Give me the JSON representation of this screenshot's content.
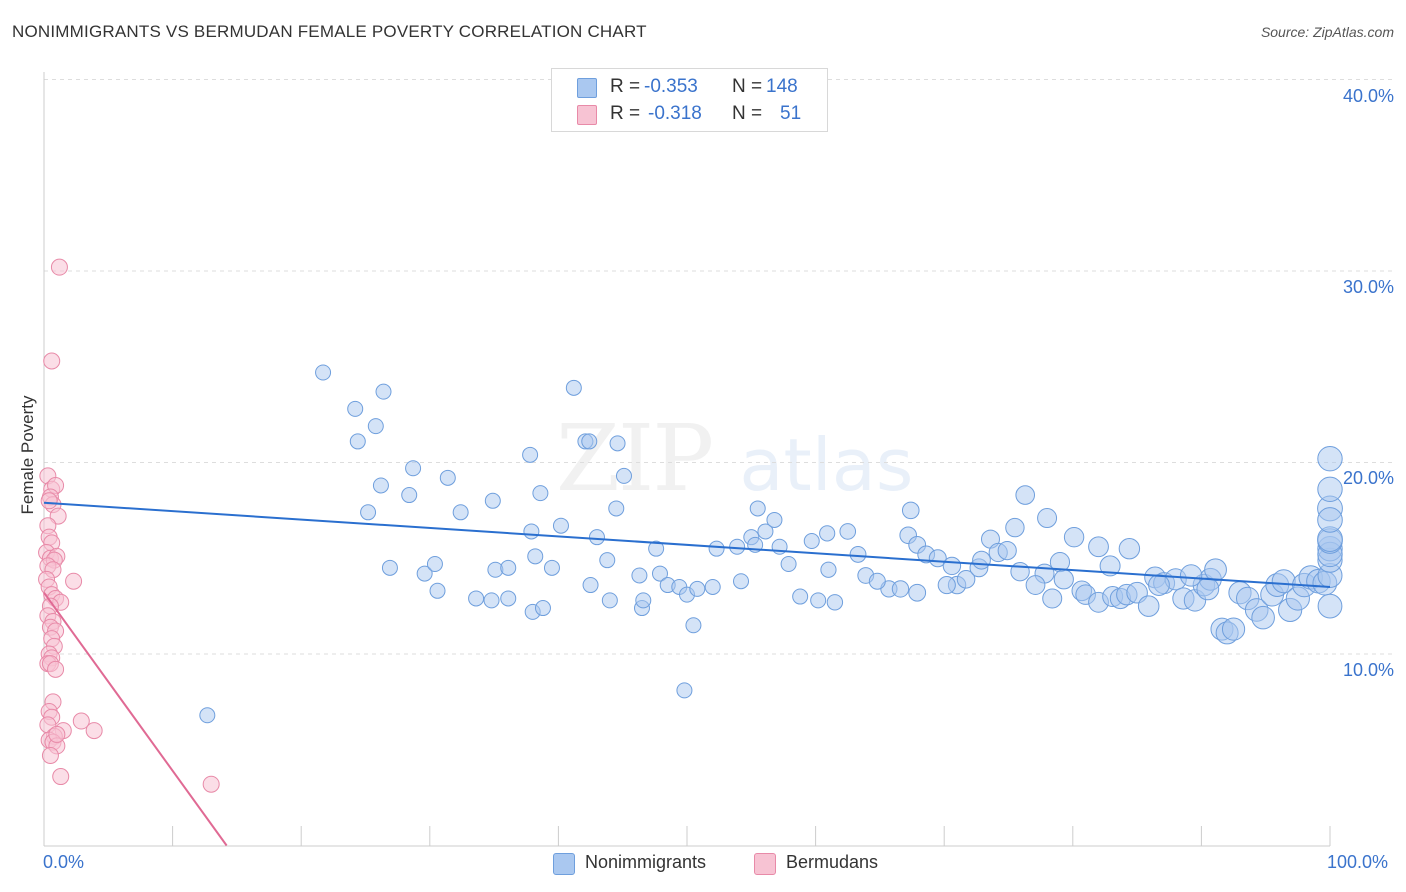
{
  "header": {
    "title": "NONIMMIGRANTS VS BERMUDAN FEMALE POVERTY CORRELATION CHART",
    "source": "Source: ZipAtlas.com"
  },
  "watermark": {
    "zip": "ZIP",
    "atlas": "atlas"
  },
  "legend": {
    "rows": [
      {
        "r_label": "R = ",
        "r_value": "-0.353",
        "n_label": "N = ",
        "n_value": "148"
      },
      {
        "r_label": "R = ",
        "r_value": "-0.318",
        "n_label": "N = ",
        "n_value": "51"
      }
    ]
  },
  "bottom_legend": {
    "series_1": "Nonimmigrants",
    "series_2": "Bermudans"
  },
  "colors": {
    "blue_fill": "#aac8f0",
    "blue_stroke": "#6f9fdd",
    "blue_line": "#2a6fcf",
    "pink_fill": "#f7c3d3",
    "pink_stroke": "#e88aa8",
    "pink_line": "#e06a94",
    "tick_text": "#3a73cc",
    "grid": "#dddddd"
  },
  "chart_data": {
    "type": "scatter",
    "title": "NONIMMIGRANTS VS BERMUDAN FEMALE POVERTY CORRELATION CHART",
    "xlabel": "",
    "ylabel": "Female Poverty",
    "xlim": [
      0,
      100
    ],
    "ylim": [
      0,
      41
    ],
    "x_tick_labels": [
      "0.0%",
      "100.0%"
    ],
    "y_ticks": [
      10,
      20,
      30,
      40
    ],
    "y_tick_labels": [
      "10.0%",
      "20.0%",
      "30.0%",
      "40.0%"
    ],
    "grid": "horizontal dashed",
    "legend_position": "top-center",
    "series": [
      {
        "name": "Nonimmigrants",
        "color": "#aac8f0",
        "R": -0.353,
        "N": 148,
        "trend": {
          "x": [
            0,
            100
          ],
          "y": [
            17.9,
            13.5
          ]
        },
        "points": [
          [
            21.7,
            24.7
          ],
          [
            26.4,
            23.7
          ],
          [
            24.2,
            22.8
          ],
          [
            24.4,
            21.1
          ],
          [
            25.8,
            21.9
          ],
          [
            26.2,
            18.8
          ],
          [
            25.2,
            17.4
          ],
          [
            28.7,
            19.7
          ],
          [
            28.4,
            18.3
          ],
          [
            31.4,
            19.2
          ],
          [
            32.4,
            17.4
          ],
          [
            34.9,
            18.0
          ],
          [
            37.8,
            20.4
          ],
          [
            37.9,
            16.4
          ],
          [
            38.6,
            18.4
          ],
          [
            40.2,
            16.7
          ],
          [
            41.2,
            23.9
          ],
          [
            42.1,
            21.1
          ],
          [
            42.4,
            21.1
          ],
          [
            44.6,
            21.0
          ],
          [
            45.1,
            19.3
          ],
          [
            44.5,
            17.6
          ],
          [
            35.1,
            14.4
          ],
          [
            36.1,
            14.5
          ],
          [
            38.2,
            15.1
          ],
          [
            39.5,
            14.5
          ],
          [
            43.0,
            16.1
          ],
          [
            43.8,
            14.9
          ],
          [
            47.6,
            15.5
          ],
          [
            26.9,
            14.5
          ],
          [
            29.6,
            14.2
          ],
          [
            30.6,
            13.3
          ],
          [
            30.4,
            14.7
          ],
          [
            33.6,
            12.9
          ],
          [
            34.8,
            12.8
          ],
          [
            36.1,
            12.9
          ],
          [
            38.0,
            12.2
          ],
          [
            38.8,
            12.4
          ],
          [
            42.5,
            13.6
          ],
          [
            44.0,
            12.8
          ],
          [
            46.3,
            14.1
          ],
          [
            46.5,
            12.4
          ],
          [
            47.9,
            14.2
          ],
          [
            48.5,
            13.6
          ],
          [
            49.4,
            13.5
          ],
          [
            50.0,
            13.1
          ],
          [
            50.8,
            13.4
          ],
          [
            52.0,
            13.5
          ],
          [
            50.5,
            11.5
          ],
          [
            54.2,
            13.8
          ],
          [
            52.3,
            15.5
          ],
          [
            53.9,
            15.6
          ],
          [
            55.0,
            16.1
          ],
          [
            55.5,
            17.6
          ],
          [
            55.3,
            15.7
          ],
          [
            56.1,
            16.4
          ],
          [
            56.8,
            17.0
          ],
          [
            57.2,
            15.6
          ],
          [
            58.8,
            13.0
          ],
          [
            60.2,
            12.8
          ],
          [
            61.5,
            12.7
          ],
          [
            59.7,
            15.9
          ],
          [
            60.9,
            16.3
          ],
          [
            61.0,
            14.4
          ],
          [
            62.5,
            16.4
          ],
          [
            63.3,
            15.2
          ],
          [
            63.9,
            14.1
          ],
          [
            65.7,
            13.4
          ],
          [
            66.6,
            13.4
          ],
          [
            67.4,
            17.5
          ],
          [
            67.2,
            16.2
          ],
          [
            67.9,
            15.7
          ],
          [
            68.6,
            15.2
          ],
          [
            69.5,
            15.0
          ],
          [
            70.6,
            14.6
          ],
          [
            71.0,
            13.6
          ],
          [
            71.7,
            13.9
          ],
          [
            72.7,
            14.5
          ],
          [
            73.6,
            16.0
          ],
          [
            74.2,
            15.3
          ],
          [
            74.9,
            15.4
          ],
          [
            75.5,
            16.6
          ],
          [
            75.9,
            14.3
          ],
          [
            77.8,
            14.2
          ],
          [
            77.1,
            13.6
          ],
          [
            76.3,
            18.3
          ],
          [
            78.0,
            17.1
          ],
          [
            79.0,
            14.8
          ],
          [
            79.3,
            13.9
          ],
          [
            80.1,
            16.1
          ],
          [
            80.7,
            13.3
          ],
          [
            81.0,
            13.1
          ],
          [
            82.0,
            12.7
          ],
          [
            83.1,
            13.0
          ],
          [
            83.7,
            12.9
          ],
          [
            84.2,
            13.1
          ],
          [
            82.0,
            15.6
          ],
          [
            82.9,
            14.6
          ],
          [
            85.0,
            13.2
          ],
          [
            85.9,
            12.5
          ],
          [
            86.4,
            14.0
          ],
          [
            87.1,
            13.7
          ],
          [
            84.4,
            15.5
          ],
          [
            88.0,
            13.9
          ],
          [
            88.6,
            12.9
          ],
          [
            89.5,
            12.8
          ],
          [
            90.2,
            13.6
          ],
          [
            90.7,
            13.9
          ],
          [
            91.1,
            14.4
          ],
          [
            91.6,
            11.3
          ],
          [
            92.0,
            11.1
          ],
          [
            92.5,
            11.3
          ],
          [
            93.0,
            13.2
          ],
          [
            93.6,
            12.9
          ],
          [
            94.3,
            12.3
          ],
          [
            94.8,
            11.9
          ],
          [
            95.5,
            13.1
          ],
          [
            95.9,
            13.6
          ],
          [
            96.4,
            13.8
          ],
          [
            96.9,
            12.3
          ],
          [
            97.5,
            12.9
          ],
          [
            98.0,
            13.6
          ],
          [
            98.5,
            14.0
          ],
          [
            99.1,
            13.8
          ],
          [
            99.6,
            13.7
          ],
          [
            100.2,
            12.5
          ],
          [
            100.6,
            14.1
          ],
          [
            101.4,
            14.9
          ],
          [
            102.3,
            15.5
          ],
          [
            102.9,
            15.2
          ],
          [
            103.7,
            15.9
          ],
          [
            104.4,
            16.0
          ],
          [
            104.9,
            17.6
          ],
          [
            103.8,
            17.0
          ],
          [
            103.1,
            18.6
          ],
          [
            103.0,
            20.2
          ],
          [
            12.7,
            6.8
          ],
          [
            49.8,
            8.1
          ],
          [
            57.9,
            14.7
          ],
          [
            46.6,
            12.8
          ],
          [
            64.8,
            13.8
          ],
          [
            67.9,
            13.2
          ],
          [
            70.2,
            13.6
          ],
          [
            72.9,
            14.9
          ],
          [
            78.4,
            12.9
          ],
          [
            86.7,
            13.6
          ],
          [
            89.2,
            14.1
          ],
          [
            90.5,
            13.4
          ]
        ]
      },
      {
        "name": "Bermudans",
        "color": "#f7c3d3",
        "R": -0.318,
        "N": 51,
        "trend": {
          "x": [
            0,
            14.2
          ],
          "y": [
            13.2,
            0
          ]
        },
        "points": [
          [
            1.2,
            30.2
          ],
          [
            0.6,
            25.3
          ],
          [
            0.3,
            19.3
          ],
          [
            0.6,
            18.6
          ],
          [
            0.9,
            18.8
          ],
          [
            0.5,
            18.2
          ],
          [
            0.7,
            17.8
          ],
          [
            1.1,
            17.2
          ],
          [
            0.3,
            16.7
          ],
          [
            0.4,
            16.1
          ],
          [
            0.6,
            15.8
          ],
          [
            0.2,
            15.3
          ],
          [
            0.5,
            15.0
          ],
          [
            1.0,
            15.1
          ],
          [
            0.8,
            14.9
          ],
          [
            0.3,
            14.6
          ],
          [
            0.7,
            14.4
          ],
          [
            0.2,
            13.9
          ],
          [
            2.3,
            13.8
          ],
          [
            0.4,
            13.5
          ],
          [
            0.6,
            13.1
          ],
          [
            0.9,
            12.9
          ],
          [
            1.3,
            12.7
          ],
          [
            0.5,
            12.5
          ],
          [
            0.3,
            12.0
          ],
          [
            0.7,
            11.7
          ],
          [
            0.5,
            11.4
          ],
          [
            0.9,
            11.2
          ],
          [
            0.6,
            10.8
          ],
          [
            0.8,
            10.4
          ],
          [
            0.4,
            10.0
          ],
          [
            0.6,
            9.8
          ],
          [
            0.3,
            9.5
          ],
          [
            0.5,
            9.5
          ],
          [
            0.7,
            7.5
          ],
          [
            0.4,
            7.0
          ],
          [
            0.6,
            6.7
          ],
          [
            0.3,
            6.3
          ],
          [
            2.9,
            6.5
          ],
          [
            3.9,
            6.0
          ],
          [
            1.5,
            6.0
          ],
          [
            0.8,
            5.7
          ],
          [
            0.4,
            5.5
          ],
          [
            0.7,
            5.4
          ],
          [
            1.0,
            5.2
          ],
          [
            0.5,
            4.7
          ],
          [
            1.3,
            3.6
          ],
          [
            13.0,
            3.2
          ],
          [
            1.0,
            5.8
          ],
          [
            0.9,
            9.2
          ],
          [
            0.4,
            18.0
          ]
        ]
      }
    ]
  }
}
